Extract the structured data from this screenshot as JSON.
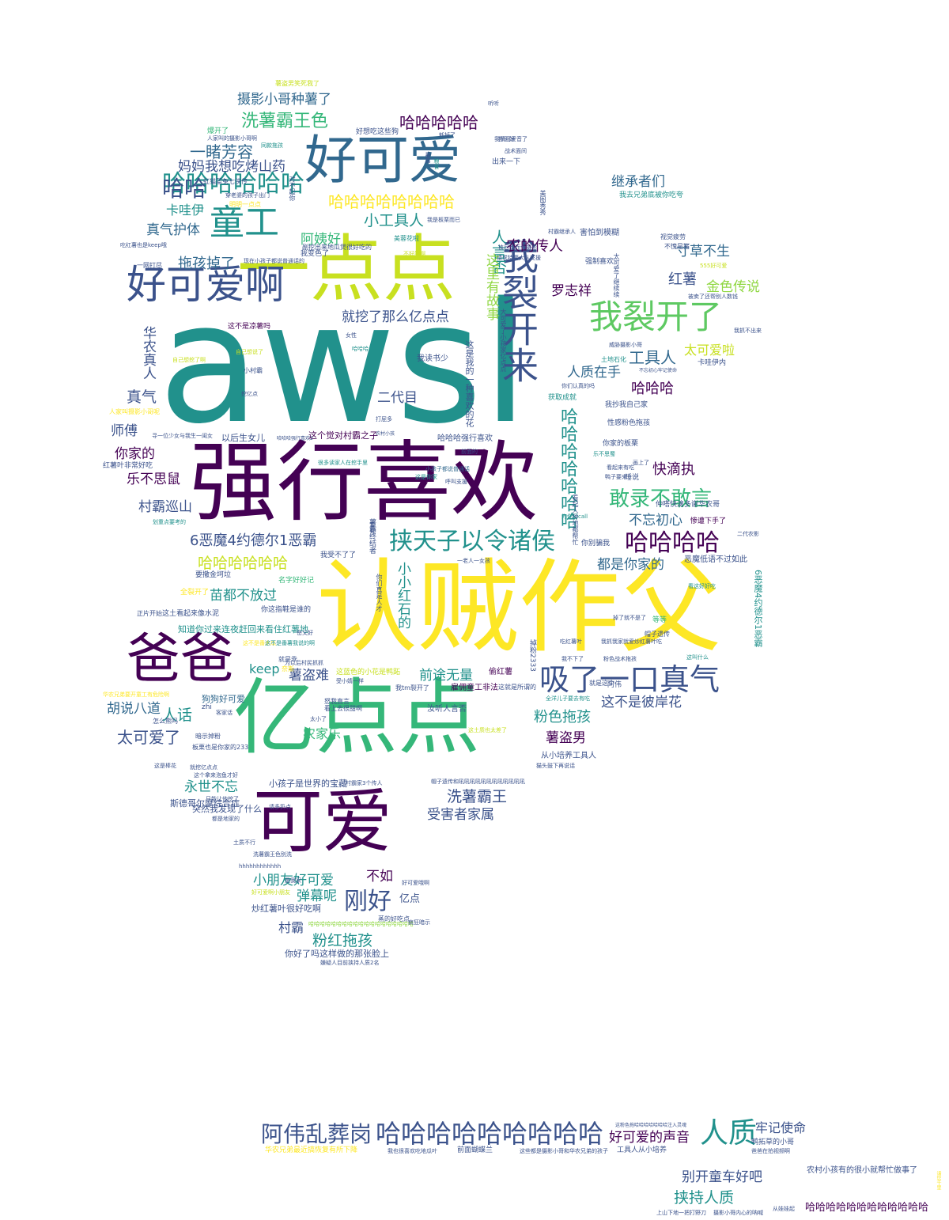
{
  "palette": {
    "dark_purple": "#440154",
    "indigo": "#3b528b",
    "blue": "#31688e",
    "teal": "#21918c",
    "green": "#35b779",
    "light_green": "#5ec962",
    "lime": "#90d743",
    "yellow": "#fde725",
    "yellow_green": "#c8e020"
  },
  "words": [
    {
      "text": "awsl",
      "color": "teal"
    },
    {
      "text": "认贼作父",
      "color": "yellow"
    },
    {
      "text": "强行喜欢",
      "color": "dark_purple"
    },
    {
      "text": "亿点点",
      "color": "green"
    },
    {
      "text": "一点点",
      "color": "yellow_green"
    },
    {
      "text": "可爱",
      "color": "dark_purple"
    },
    {
      "text": "好可爱",
      "color": "blue"
    },
    {
      "text": "爸爸",
      "color": "dark_purple"
    },
    {
      "text": "好可爱啊",
      "color": "indigo"
    },
    {
      "text": "我裂开来",
      "color": "indigo"
    },
    {
      "text": "我裂开了",
      "color": "light_green"
    },
    {
      "text": "童工",
      "color": "teal"
    },
    {
      "text": "吸了一口真气",
      "color": "indigo"
    },
    {
      "text": "哈哈哈哈哈哈",
      "color": "teal"
    },
    {
      "text": "挟天子以令诸侯",
      "color": "teal"
    },
    {
      "text": "敢录不敢言",
      "color": "green"
    },
    {
      "text": "哈哈哈哈",
      "color": "dark_purple"
    },
    {
      "text": "哈哈哈哈哈哈哈哈哈",
      "color": "indigo"
    },
    {
      "text": "阿伟乱葬岗",
      "color": "indigo"
    },
    {
      "text": "人质",
      "color": "teal"
    },
    {
      "text": "刚好",
      "color": "indigo"
    },
    {
      "text": "哈哈",
      "color": "indigo"
    },
    {
      "text": "哈哈哈哈哈哈哈哈",
      "color": "yellow"
    },
    {
      "text": "哈哈哈哈哈",
      "color": "dark_purple"
    },
    {
      "text": "洗薯霸王色",
      "color": "green"
    },
    {
      "text": "摄影小哥种薯了",
      "color": "blue"
    },
    {
      "text": "一睹芳容",
      "color": "blue"
    },
    {
      "text": "妈妈我想吃烤山药",
      "color": "indigo"
    },
    {
      "text": "卡哇伊",
      "color": "teal"
    },
    {
      "text": "真气护体",
      "color": "blue"
    },
    {
      "text": "拖孩掉了",
      "color": "blue"
    },
    {
      "text": "小工具人",
      "color": "teal"
    },
    {
      "text": "阿姨好",
      "color": "green"
    },
    {
      "text": "人言否",
      "color": "teal"
    },
    {
      "text": "这里有故事",
      "color": "lime"
    },
    {
      "text": "农的传人",
      "color": "dark_purple"
    },
    {
      "text": "继承者们",
      "color": "blue"
    },
    {
      "text": "寸草不生",
      "color": "blue"
    },
    {
      "text": "红薯",
      "color": "indigo"
    },
    {
      "text": "金色传说",
      "color": "lime"
    },
    {
      "text": "罗志祥",
      "color": "dark_purple"
    },
    {
      "text": "就挖了那么亿点点",
      "color": "indigo"
    },
    {
      "text": "工具人",
      "color": "blue"
    },
    {
      "text": "太可爱啦",
      "color": "yellow_green"
    },
    {
      "text": "人质在手",
      "color": "blue"
    },
    {
      "text": "哈哈哈",
      "color": "dark_purple"
    },
    {
      "text": "华农真人",
      "color": "indigo"
    },
    {
      "text": "真气",
      "color": "indigo"
    },
    {
      "text": "二代目",
      "color": "indigo"
    },
    {
      "text": "师傅",
      "color": "indigo"
    },
    {
      "text": "你家的",
      "color": "dark_purple"
    },
    {
      "text": "乐不思鼠",
      "color": "dark_purple"
    },
    {
      "text": "村霸巡山",
      "color": "indigo"
    },
    {
      "text": "6恶魔4约德尔1恶霸",
      "color": "indigo"
    },
    {
      "text": "快滴执",
      "color": "dark_purple"
    },
    {
      "text": "不忘初心",
      "color": "blue"
    },
    {
      "text": "都是你家的",
      "color": "blue"
    },
    {
      "text": "哈哈哈哈哈哈哈",
      "color": "teal"
    },
    {
      "text": "哈哈哈哈哈哈",
      "color": "yellow_green"
    },
    {
      "text": "苗都不放过",
      "color": "teal"
    },
    {
      "text": "小小红石的",
      "color": "teal"
    },
    {
      "text": "keep",
      "color": "teal"
    },
    {
      "text": "薯盗难",
      "color": "indigo"
    },
    {
      "text": "前途无量",
      "color": "teal"
    },
    {
      "text": "这不是彼岸花",
      "color": "indigo"
    },
    {
      "text": "胡说八道",
      "color": "blue"
    },
    {
      "text": "人话",
      "color": "teal"
    },
    {
      "text": "太可爱了",
      "color": "indigo"
    },
    {
      "text": "农家乐",
      "color": "green"
    },
    {
      "text": "粉色拖孩",
      "color": "teal"
    },
    {
      "text": "薯盗男",
      "color": "dark_purple"
    },
    {
      "text": "永世不忘",
      "color": "teal"
    },
    {
      "text": "洗薯霸王",
      "color": "indigo"
    },
    {
      "text": "受害者家属",
      "color": "indigo"
    },
    {
      "text": "小朋友好可爱",
      "color": "teal"
    },
    {
      "text": "不如",
      "color": "dark_purple"
    },
    {
      "text": "弹幕呢",
      "color": "teal"
    },
    {
      "text": "村霸",
      "color": "indigo"
    },
    {
      "text": "粉红拖孩",
      "color": "teal"
    },
    {
      "text": "好可爱的声音",
      "color": "dark_purple"
    },
    {
      "text": "牢记使命",
      "color": "indigo"
    },
    {
      "text": "别开童车好吧",
      "color": "indigo"
    },
    {
      "text": "挟持人质",
      "color": "teal"
    },
    {
      "text": "哈哈哈哈哈哈哈哈哈哈哈哈",
      "color": "dark_purple"
    },
    {
      "text": "亿点",
      "color": "indigo"
    },
    {
      "text": "斯德哥尔摩综合症",
      "color": "indigo"
    },
    {
      "text": "狗狗好可爱",
      "color": "blue"
    },
    {
      "text": "知道你过来连夜赶回来看住红薯地",
      "color": "teal"
    },
    {
      "text": "突然我发现了什么",
      "color": "indigo"
    },
    {
      "text": "小孩子是世界的宝藏",
      "color": "indigo"
    },
    {
      "text": "炒红薯叶很好吃啊",
      "color": "indigo"
    },
    {
      "text": "你好了吗这样做的那张脸上",
      "color": "indigo"
    },
    {
      "text": "红薯叶非常好吃",
      "color": "indigo"
    },
    {
      "text": "以后生女儿",
      "color": "indigo"
    },
    {
      "text": "这个觉对村霸之子",
      "color": "dark_purple"
    },
    {
      "text": "哈哈哈强行喜欢",
      "color": "indigo"
    },
    {
      "text": "我读书少",
      "color": "indigo"
    },
    {
      "text": "这不是凉薯吗",
      "color": "dark_purple"
    },
    {
      "text": "害怕到模糊",
      "color": "indigo"
    },
    {
      "text": "性感粉色拖孩",
      "color": "indigo"
    },
    {
      "text": "你家的板栗",
      "color": "indigo"
    },
    {
      "text": "恶魔低语不过如此",
      "color": "indigo"
    },
    {
      "text": "仲嗒快滴多谢华农哥",
      "color": "indigo"
    },
    {
      "text": "惨遭下手了",
      "color": "dark_purple"
    },
    {
      "text": "雇佣童工非法",
      "color": "dark_purple"
    },
    {
      "text": "从小培养工具人",
      "color": "indigo"
    },
    {
      "text": "农村小孩有的很小就帮忙做事了",
      "color": "indigo"
    },
    {
      "text": "工具人从小培养",
      "color": "indigo"
    },
    {
      "text": "鸭拓草的小哥",
      "color": "indigo"
    },
    {
      "text": "前面蝴蝶兰",
      "color": "indigo"
    },
    {
      "text": "华农兄弟最近搞恢复有所下降",
      "color": "yellow"
    },
    {
      "text": "这土看起来像水泥",
      "color": "indigo"
    },
    {
      "text": "要撒金坷垃",
      "color": "indigo"
    },
    {
      "text": "名字好好记",
      "color": "green"
    },
    {
      "text": "你这指鞋是谁的",
      "color": "indigo"
    },
    {
      "text": "剐挖出来地瓜煲很好吃的",
      "color": "indigo"
    },
    {
      "text": "现在小孩子都说普通话的",
      "color": "indigo"
    },
    {
      "text": "我变色了",
      "color": "indigo"
    },
    {
      "text": "好想吃这些狗",
      "color": "indigo"
    },
    {
      "text": "虹猫蓝兔七侠传",
      "color": "indigo"
    },
    {
      "text": "明明一点点",
      "color": "yellow"
    },
    {
      "text": "薯盗男笑死我了",
      "color": "yellow_green"
    },
    {
      "text": "掉粉2333",
      "color": "indigo"
    },
    {
      "text": "偷红薯",
      "color": "dark_purple"
    },
    {
      "text": "汝听人言否",
      "color": "indigo"
    },
    {
      "text": "我tm裂开了",
      "color": "indigo"
    },
    {
      "text": "蒸的好吃点",
      "color": "indigo"
    },
    {
      "text": "看上去很甜啊",
      "color": "indigo"
    },
    {
      "text": "怒我直言",
      "color": "indigo"
    },
    {
      "text": "受小婧一样",
      "color": "indigo"
    },
    {
      "text": "这蓝色的小花是鸭跖",
      "color": "yellow_green"
    },
    {
      "text": "哈哈哈哈哈哈哈哈哈哈哈哈哈哈哈哈哈哈哈",
      "color": "lime"
    },
    {
      "text": "嫌疑人目前挟持人质2名",
      "color": "indigo"
    },
    {
      "text": "暗示掉粉",
      "color": "indigo"
    },
    {
      "text": "板栗也是你家的233",
      "color": "indigo"
    },
    {
      "text": "就挖亿点点",
      "color": "indigo"
    },
    {
      "text": "这是棒花",
      "color": "indigo"
    },
    {
      "text": "这个拿来泡鱼才好",
      "color": "indigo"
    },
    {
      "text": "只能让他挖了",
      "color": "indigo"
    },
    {
      "text": "请多扔点",
      "color": "indigo"
    },
    {
      "text": "都是地家的",
      "color": "indigo"
    },
    {
      "text": "土质不行",
      "color": "indigo"
    },
    {
      "text": "洗薯霸王色别洗",
      "color": "indigo"
    },
    {
      "text": "hhhhhhhhhhhh",
      "color": "indigo"
    },
    {
      "text": "好可爱哦啊",
      "color": "indigo"
    },
    {
      "text": "好可爱啊小朋友",
      "color": "yellow_green"
    },
    {
      "text": "疯狂暗示",
      "color": "indigo"
    },
    {
      "text": "扑恐好",
      "color": "indigo"
    },
    {
      "text": "出来一下",
      "color": "indigo"
    },
    {
      "text": "战术面间",
      "color": "indigo"
    },
    {
      "text": "我去兄弟底被你吃夸",
      "color": "teal"
    },
    {
      "text": "视觉疲劳",
      "color": "indigo"
    },
    {
      "text": "不愧是猪",
      "color": "indigo"
    },
    {
      "text": "555好可爱",
      "color": "yellow_green"
    },
    {
      "text": "被卖了还帮别人数钱",
      "color": "indigo"
    },
    {
      "text": "我抄我自己家",
      "color": "indigo"
    },
    {
      "text": "获取成就",
      "color": "teal"
    },
    {
      "text": "强制喜欢",
      "color": "indigo"
    },
    {
      "text": "卡哇伊内",
      "color": "indigo"
    },
    {
      "text": "土地石化",
      "color": "teal"
    },
    {
      "text": "不忘初心牢记使命",
      "color": "indigo"
    },
    {
      "text": "威胁摄影小哥",
      "color": "indigo"
    },
    {
      "text": "我抓不出来",
      "color": "indigo"
    },
    {
      "text": "村霸继承人",
      "color": "indigo"
    },
    {
      "text": "请求特警大队支援",
      "color": "indigo"
    },
    {
      "text": "挟目女而令摄影",
      "color": "indigo"
    },
    {
      "text": "美蓉花啦",
      "color": "teal"
    },
    {
      "text": "不好笑啊",
      "color": "yellow_green"
    },
    {
      "text": "我是板栗而已",
      "color": "indigo"
    },
    {
      "text": "一网打尽",
      "color": "indigo"
    },
    {
      "text": "吃红薯也是keep哦",
      "color": "indigo"
    },
    {
      "text": "自己想挖了啊",
      "color": "yellow_green"
    },
    {
      "text": "小村霸",
      "color": "indigo"
    },
    {
      "text": "挖亿点",
      "color": "indigo"
    },
    {
      "text": "人家叫摄影小哥呢",
      "color": "yellow"
    },
    {
      "text": "寻一位少女与我生一闺女",
      "color": "indigo"
    },
    {
      "text": "哈哈哈强行喜欢2",
      "color": "indigo"
    },
    {
      "text": "农村小孩",
      "color": "indigo"
    },
    {
      "text": "很多读家人在挖手里",
      "color": "teal"
    },
    {
      "text": "呼叫支援",
      "color": "indigo"
    },
    {
      "text": "看起来有吃",
      "color": "indigo"
    },
    {
      "text": "你别骗我",
      "color": "indigo"
    },
    {
      "text": "二代农影",
      "color": "indigo"
    },
    {
      "text": "看这好好吃",
      "color": "teal"
    },
    {
      "text": "掉了就不是了",
      "color": "indigo"
    },
    {
      "text": "等等",
      "color": "green"
    },
    {
      "text": "帽子遗传",
      "color": "indigo"
    },
    {
      "text": "我抓我家就爱炒红薯叶吃",
      "color": "indigo"
    },
    {
      "text": "粉色战术拖孩",
      "color": "indigo"
    },
    {
      "text": "这叫什么",
      "color": "teal"
    },
    {
      "text": "我不下了",
      "color": "indigo"
    },
    {
      "text": "阿伟",
      "color": "indigo"
    },
    {
      "text": "这就是所谓的",
      "color": "indigo"
    },
    {
      "text": "全洋儿子要去有吃",
      "color": "teal"
    },
    {
      "text": "一老人一女孩",
      "color": "indigo"
    },
    {
      "text": "帽子遗传和吼吼吼吼吼吼吼吼吼吼吼吼",
      "color": "indigo"
    },
    {
      "text": "猫头鼓下再说话",
      "color": "indigo"
    },
    {
      "text": "村霸家3个传人",
      "color": "indigo"
    },
    {
      "text": "这土质也太差了",
      "color": "yellow_green"
    },
    {
      "text": "太小了",
      "color": "indigo"
    },
    {
      "text": "怎么熊吗",
      "color": "indigo"
    },
    {
      "text": "客家话",
      "color": "indigo"
    },
    {
      "text": "zhi",
      "color": "indigo"
    },
    {
      "text": "华农兄弟要开童工有危险啊",
      "color": "yellow"
    },
    {
      "text": "全裂开了",
      "color": "yellow"
    },
    {
      "text": "正片开始",
      "color": "indigo"
    },
    {
      "text": "岳父好",
      "color": "indigo"
    },
    {
      "text": "这不是番木瓜",
      "color": "yellow"
    },
    {
      "text": "这不是番薯我说的啊",
      "color": "teal"
    },
    {
      "text": "你们真是人才",
      "color": "indigo"
    },
    {
      "text": "就是乖",
      "color": "indigo"
    },
    {
      "text": "为以后村民抓抓",
      "color": "indigo"
    },
    {
      "text": "这粉色拖哈哈哈哈哈哈哈注入灵魂",
      "color": "indigo"
    },
    {
      "text": "我也很喜欢吃地瓜叶",
      "color": "indigo"
    },
    {
      "text": "这些都是摄影小哥和华农兄弟的孩子",
      "color": "indigo"
    },
    {
      "text": "上山下地一把打野刀",
      "color": "indigo"
    },
    {
      "text": "摄影小哥内心的呐喊",
      "color": "indigo"
    },
    {
      "text": "从娃娃起",
      "color": "indigo"
    },
    {
      "text": "爸爸在拍视频啊",
      "color": "indigo"
    },
    {
      "text": "请您千里",
      "color": "yellow"
    },
    {
      "text": "6恶魔4约德尔1恶霸",
      "color": "teal"
    },
    {
      "text": "太可爱了继续续",
      "color": "indigo"
    },
    {
      "text": "奈斯",
      "color": "yellow"
    },
    {
      "text": "对不起你",
      "color": "indigo"
    },
    {
      "text": "爆开了",
      "color": "green"
    },
    {
      "text": "人家叫的摄影小哥啊",
      "color": "indigo"
    },
    {
      "text": "同款拖孩",
      "color": "teal"
    },
    {
      "text": "穿老婆的孩子出门",
      "color": "indigo"
    },
    {
      "text": "耗掉了",
      "color": "indigo"
    },
    {
      "text": "我猜可爱音了",
      "color": "indigo"
    },
    {
      "text": "听听",
      "color": "indigo"
    },
    {
      "text": "这是我的一种喜欢的花",
      "color": "indigo"
    },
    {
      "text": "美图秀秀",
      "color": "indigo"
    },
    {
      "text": "大可爱了小孩家亿点点",
      "color": "indigo"
    },
    {
      "text": "你们认真的吗",
      "color": "indigo"
    },
    {
      "text": "前面的",
      "color": "indigo"
    },
    {
      "text": "女性",
      "color": "indigo"
    },
    {
      "text": "打屁多",
      "color": "indigo"
    },
    {
      "text": "睡说",
      "color": "indigo"
    },
    {
      "text": "看起人种地都帮忙",
      "color": "indigo"
    },
    {
      "text": "哈哈哈",
      "color": "teal"
    },
    {
      "text": "暴露",
      "color": "indigo"
    },
    {
      "text": "粮食",
      "color": "teal"
    },
    {
      "text": "小孩子都说普通话",
      "color": "blue"
    },
    {
      "text": "这是你家",
      "color": "teal"
    },
    {
      "text": "暂暂",
      "color": "indigo"
    },
    {
      "text": "乐不思蜀",
      "color": "teal"
    },
    {
      "text": "画上了",
      "color": "indigo"
    },
    {
      "text": "薯霸终结者",
      "color": "indigo"
    },
    {
      "text": "为你打call",
      "color": "teal"
    },
    {
      "text": "鸭子要来",
      "color": "indigo"
    },
    {
      "text": "我受不了了",
      "color": "indigo"
    },
    {
      "text": "划重点要考的",
      "color": "teal"
    },
    {
      "text": "自己想说了",
      "color": "yellow_green"
    },
    {
      "text": "吃红薯叶",
      "color": "indigo"
    },
    {
      "text": "就是这个",
      "color": "indigo"
    },
    {
      "text": "是我家",
      "color": "indigo"
    }
  ]
}
